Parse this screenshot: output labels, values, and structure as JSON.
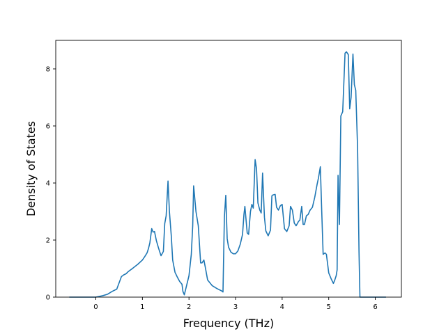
{
  "chart_data": {
    "type": "line",
    "xlabel": "Frequency (THz)",
    "ylabel": "Density of States",
    "xlim": [
      -0.86,
      6.56
    ],
    "ylim": [
      0,
      9
    ],
    "xticks": [
      0,
      1,
      2,
      3,
      4,
      5,
      6
    ],
    "yticks": [
      0,
      2,
      4,
      6,
      8
    ],
    "line_color": "#1f77b4",
    "grid": false,
    "legend": "none",
    "series": [
      {
        "x": [
          -0.57,
          -0.3,
          0.0,
          0.15,
          0.25,
          0.35,
          0.45,
          0.5,
          0.55,
          0.6,
          0.65,
          0.7,
          0.8,
          0.9,
          1.0,
          1.05,
          1.1,
          1.13,
          1.16,
          1.2,
          1.23,
          1.26,
          1.3,
          1.35,
          1.38,
          1.4,
          1.45,
          1.48,
          1.51,
          1.55,
          1.58,
          1.62,
          1.65,
          1.7,
          1.75,
          1.8,
          1.85,
          1.87,
          1.9,
          2.0,
          2.05,
          2.08,
          2.1,
          2.15,
          2.2,
          2.25,
          2.28,
          2.32,
          2.35,
          2.4,
          2.5,
          2.6,
          2.7,
          2.73,
          2.76,
          2.79,
          2.82,
          2.85,
          2.9,
          2.95,
          3.0,
          3.05,
          3.1,
          3.15,
          3.18,
          3.2,
          3.25,
          3.28,
          3.32,
          3.35,
          3.38,
          3.42,
          3.45,
          3.48,
          3.52,
          3.55,
          3.58,
          3.62,
          3.65,
          3.7,
          3.75,
          3.78,
          3.8,
          3.85,
          3.88,
          3.92,
          3.96,
          4.0,
          4.05,
          4.1,
          4.15,
          4.18,
          4.22,
          4.26,
          4.3,
          4.35,
          4.38,
          4.42,
          4.45,
          4.48,
          4.52,
          4.56,
          4.6,
          4.65,
          4.7,
          4.75,
          4.78,
          4.82,
          4.85,
          4.88,
          4.92,
          4.95,
          5.0,
          5.05,
          5.1,
          5.13,
          5.16,
          5.18,
          5.2,
          5.23,
          5.26,
          5.3,
          5.35,
          5.38,
          5.42,
          5.45,
          5.48,
          5.52,
          5.55,
          5.58,
          5.62,
          5.65,
          5.67,
          5.7,
          6.0,
          6.23
        ],
        "y": [
          0,
          0,
          0,
          0.05,
          0.1,
          0.2,
          0.28,
          0.5,
          0.72,
          0.78,
          0.82,
          0.9,
          1.02,
          1.15,
          1.3,
          1.42,
          1.55,
          1.7,
          1.9,
          2.4,
          2.28,
          2.3,
          1.98,
          1.7,
          1.55,
          1.45,
          1.6,
          2.58,
          2.85,
          4.07,
          3.0,
          2.15,
          1.3,
          0.87,
          0.7,
          0.55,
          0.45,
          0.2,
          0.08,
          0.75,
          1.5,
          2.5,
          3.9,
          3.0,
          2.5,
          1.2,
          1.2,
          1.3,
          1.05,
          0.6,
          0.4,
          0.3,
          0.22,
          0.18,
          2.8,
          3.57,
          2.05,
          1.75,
          1.58,
          1.52,
          1.52,
          1.62,
          1.85,
          2.2,
          2.9,
          3.18,
          2.25,
          2.2,
          3.0,
          3.25,
          3.12,
          4.82,
          4.5,
          3.3,
          3.05,
          2.95,
          4.35,
          2.8,
          2.32,
          2.15,
          2.35,
          3.55,
          3.58,
          3.6,
          3.15,
          3.05,
          3.2,
          3.25,
          2.4,
          2.3,
          2.5,
          3.18,
          3.05,
          2.6,
          2.5,
          2.65,
          2.7,
          3.18,
          2.55,
          2.55,
          2.85,
          2.9,
          3.05,
          3.15,
          3.5,
          3.95,
          4.18,
          4.57,
          3.0,
          1.5,
          1.55,
          1.5,
          0.85,
          0.65,
          0.48,
          0.6,
          0.75,
          0.95,
          4.27,
          2.55,
          6.35,
          6.5,
          8.55,
          8.6,
          8.5,
          6.6,
          7.0,
          8.52,
          7.45,
          7.25,
          5.2,
          1.6,
          0,
          0,
          0,
          0
        ]
      }
    ]
  }
}
